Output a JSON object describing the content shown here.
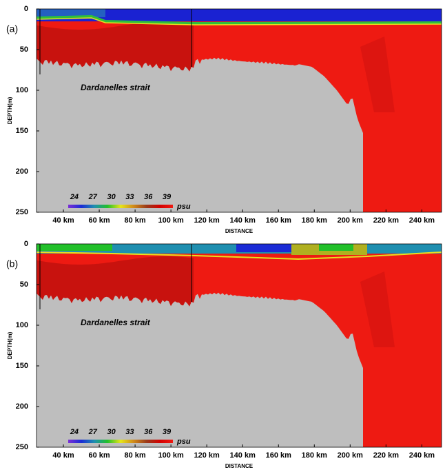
{
  "chart_data": [
    {
      "type": "section",
      "panel_label": "(a)",
      "annotation": "Dardanelles strait",
      "xlabel": "DISTANCE",
      "ylabel": "DEPTH(m)",
      "xlim": [
        25,
        251
      ],
      "ylim": [
        250,
        0
      ],
      "xticks": [
        {
          "value": 40,
          "label": "40 km"
        },
        {
          "value": 60,
          "label": "60 km"
        },
        {
          "value": 80,
          "label": "80 km"
        },
        {
          "value": 100,
          "label": "100 km"
        },
        {
          "value": 120,
          "label": "120 km"
        },
        {
          "value": 140,
          "label": "140 km"
        },
        {
          "value": 160,
          "label": "160 km"
        },
        {
          "value": 180,
          "label": "180 km"
        },
        {
          "value": 200,
          "label": "200 km"
        },
        {
          "value": 220,
          "label": "220 km"
        },
        {
          "value": 240,
          "label": "240 km"
        }
      ],
      "yticks": [
        0,
        50,
        100,
        150,
        200,
        250
      ],
      "colorbar": {
        "unit": "psu",
        "clim": [
          23,
          40
        ],
        "ticks": [
          24,
          27,
          30,
          33,
          36,
          39
        ],
        "colormap": [
          "#7b2fd6",
          "#1a2bd6",
          "#1f8fb0",
          "#22c02a",
          "#e6e61a",
          "#d08a1a",
          "#9a3a1a",
          "#d40000",
          "#ee1a12"
        ]
      }
    },
    {
      "type": "section",
      "panel_label": "(b)",
      "annotation": "Dardanelles strait",
      "xlabel": "DISTANCE",
      "ylabel": "DEPTH(m)",
      "xlim": [
        25,
        251
      ],
      "ylim": [
        250,
        0
      ],
      "xticks": [
        {
          "value": 40,
          "label": "40 km"
        },
        {
          "value": 60,
          "label": "60 km"
        },
        {
          "value": 80,
          "label": "80 km"
        },
        {
          "value": 100,
          "label": "100 km"
        },
        {
          "value": 120,
          "label": "120 km"
        },
        {
          "value": 140,
          "label": "140 km"
        },
        {
          "value": 160,
          "label": "160 km"
        },
        {
          "value": 180,
          "label": "180 km"
        },
        {
          "value": 200,
          "label": "200 km"
        },
        {
          "value": 220,
          "label": "220 km"
        },
        {
          "value": 240,
          "label": "240 km"
        }
      ],
      "yticks": [
        0,
        50,
        100,
        150,
        200,
        250
      ],
      "colorbar": {
        "unit": "psu",
        "clim": [
          23,
          40
        ],
        "ticks": [
          24,
          27,
          30,
          33,
          36,
          39
        ],
        "colormap": [
          "#7b2fd6",
          "#1a2bd6",
          "#1f8fb0",
          "#22c02a",
          "#e6e61a",
          "#d08a1a",
          "#9a3a1a",
          "#d40000",
          "#ee1a12"
        ]
      }
    }
  ]
}
